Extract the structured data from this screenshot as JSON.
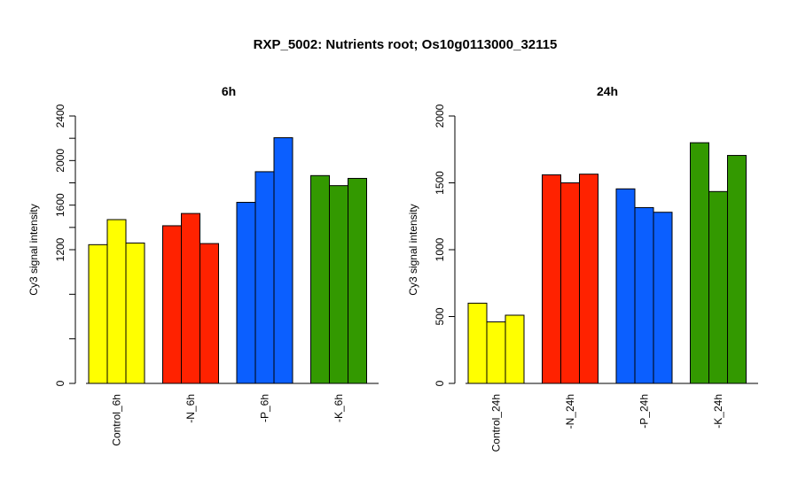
{
  "title": "RXP_5002: Nutrients root; Os10g0113000_32115",
  "colors": {
    "control": "#FFFF00",
    "N": "#FF2200",
    "P": "#0B5FFF",
    "K": "#339900"
  },
  "chart_data": [
    {
      "type": "bar",
      "title": "6h",
      "ylabel": "Cy3 signal intensity",
      "ylim": [
        0,
        2400
      ],
      "yticks": [
        0,
        1200,
        1600,
        2000,
        2400
      ],
      "ytick_labels": [
        "0",
        "1200",
        "1600",
        "2000",
        "2400"
      ],
      "categories": [
        "Control_6h",
        "-N_6h",
        "-P_6h",
        "-K_6h"
      ],
      "group_colors": [
        "#FFFF00",
        "#FF2200",
        "#0B5FFF",
        "#339900"
      ],
      "values": [
        [
          1245,
          1470,
          1260
        ],
        [
          1415,
          1525,
          1255
        ],
        [
          1625,
          1900,
          2205
        ],
        [
          1865,
          1775,
          1840
        ]
      ]
    },
    {
      "type": "bar",
      "title": "24h",
      "ylabel": "Cy3 signal intensity",
      "ylim": [
        0,
        2000
      ],
      "yticks": [
        0,
        500,
        1000,
        1500,
        2000
      ],
      "ytick_labels": [
        "0",
        "500",
        "1000",
        "1500",
        "2000"
      ],
      "categories": [
        "Control_24h",
        "-N_24h",
        "-P_24h",
        "-K_24h"
      ],
      "group_colors": [
        "#FFFF00",
        "#FF2200",
        "#0B5FFF",
        "#339900"
      ],
      "values": [
        [
          600,
          460,
          510
        ],
        [
          1560,
          1500,
          1565
        ],
        [
          1455,
          1315,
          1280
        ],
        [
          1800,
          1435,
          1705
        ]
      ]
    }
  ]
}
